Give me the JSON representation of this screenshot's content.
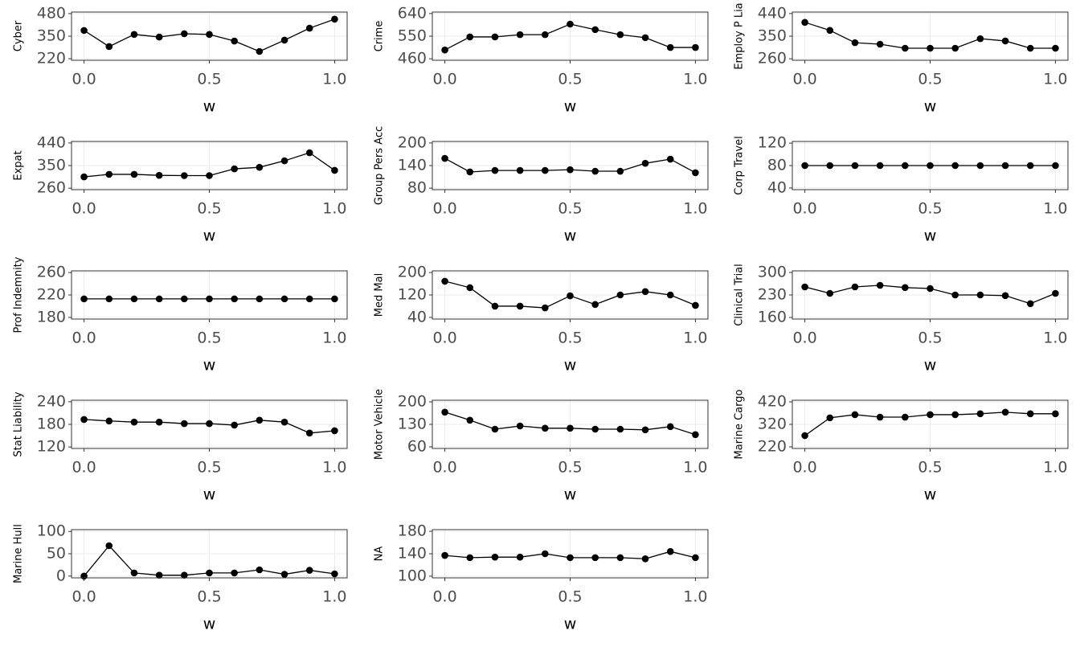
{
  "chart_data": [
    {
      "type": "line",
      "y_label": "Cyber",
      "x_label": "w",
      "x": [
        0,
        0.1,
        0.2,
        0.3,
        0.4,
        0.5,
        0.6,
        0.7,
        0.8,
        0.9,
        1
      ],
      "values": [
        383,
        290,
        360,
        345,
        364,
        360,
        322,
        262,
        327,
        396,
        448
      ],
      "xlim": [
        -0.05,
        1.05
      ],
      "xticks": [
        {
          "value": 0,
          "label": "0.0"
        },
        {
          "value": 0.5,
          "label": "0.5"
        },
        {
          "value": 1,
          "label": "1.0"
        }
      ],
      "ylim": [
        211,
        489
      ],
      "yticks": [
        220,
        350,
        480
      ],
      "color": "#000000",
      "grid": true
    },
    {
      "type": "line",
      "y_label": "Crime",
      "x_label": "w",
      "x": [
        0,
        0.1,
        0.2,
        0.3,
        0.4,
        0.5,
        0.6,
        0.7,
        0.8,
        0.9,
        1
      ],
      "values": [
        495,
        547,
        547,
        556,
        556,
        598,
        576,
        556,
        544,
        505,
        505
      ],
      "xlim": [
        -0.05,
        1.05
      ],
      "xticks": [
        {
          "value": 0,
          "label": "0.0"
        },
        {
          "value": 0.5,
          "label": "0.5"
        },
        {
          "value": 1,
          "label": "1.0"
        }
      ],
      "ylim": [
        454,
        646
      ],
      "yticks": [
        460,
        550,
        640
      ],
      "color": "#000000",
      "grid": true
    },
    {
      "type": "line",
      "y_label": "Employ P Lia",
      "x_label": "w",
      "x": [
        0,
        0.1,
        0.2,
        0.3,
        0.4,
        0.5,
        0.6,
        0.7,
        0.8,
        0.9,
        1
      ],
      "values": [
        405,
        373,
        324,
        318,
        302,
        302,
        302,
        340,
        331,
        302,
        302
      ],
      "xlim": [
        -0.05,
        1.05
      ],
      "xticks": [
        {
          "value": 0,
          "label": "0.0"
        },
        {
          "value": 0.5,
          "label": "0.5"
        },
        {
          "value": 1,
          "label": "1.0"
        }
      ],
      "ylim": [
        254,
        446
      ],
      "yticks": [
        260,
        350,
        440
      ],
      "color": "#000000",
      "grid": true
    },
    {
      "type": "line",
      "y_label": "Expat",
      "x_label": "w",
      "x": [
        0,
        0.1,
        0.2,
        0.3,
        0.4,
        0.5,
        0.6,
        0.7,
        0.8,
        0.9,
        1
      ],
      "values": [
        305,
        315,
        315,
        311,
        310,
        310,
        337,
        343,
        369,
        401,
        331
      ],
      "xlim": [
        -0.05,
        1.05
      ],
      "xticks": [
        {
          "value": 0,
          "label": "0.0"
        },
        {
          "value": 0.5,
          "label": "0.5"
        },
        {
          "value": 1,
          "label": "1.0"
        }
      ],
      "ylim": [
        254,
        446
      ],
      "yticks": [
        260,
        350,
        440
      ],
      "color": "#000000",
      "grid": true
    },
    {
      "type": "line",
      "y_label": "Group Pers Acc",
      "x_label": "w",
      "x": [
        0,
        0.1,
        0.2,
        0.3,
        0.4,
        0.5,
        0.6,
        0.7,
        0.8,
        0.9,
        1
      ],
      "values": [
        159,
        123,
        127,
        127,
        127,
        129,
        125,
        125,
        146,
        157,
        121
      ],
      "xlim": [
        -0.05,
        1.05
      ],
      "xticks": [
        {
          "value": 0,
          "label": "0.0"
        },
        {
          "value": 0.5,
          "label": "0.5"
        },
        {
          "value": 1,
          "label": "1.0"
        }
      ],
      "ylim": [
        76,
        204
      ],
      "yticks": [
        80,
        140,
        200
      ],
      "color": "#000000",
      "grid": true
    },
    {
      "type": "line",
      "y_label": "Corp Travel",
      "x_label": "w",
      "x": [
        0,
        0.1,
        0.2,
        0.3,
        0.4,
        0.5,
        0.6,
        0.7,
        0.8,
        0.9,
        1
      ],
      "values": [
        80,
        80,
        80,
        80,
        80,
        80,
        80,
        80,
        80,
        80,
        80
      ],
      "xlim": [
        -0.05,
        1.05
      ],
      "xticks": [
        {
          "value": 0,
          "label": "0.0"
        },
        {
          "value": 0.5,
          "label": "0.5"
        },
        {
          "value": 1,
          "label": "1.0"
        }
      ],
      "ylim": [
        37,
        123
      ],
      "yticks": [
        40,
        80,
        120
      ],
      "color": "#000000",
      "grid": true
    },
    {
      "type": "line",
      "y_label": "Prof Indemnity",
      "x_label": "w",
      "x": [
        0,
        0.1,
        0.2,
        0.3,
        0.4,
        0.5,
        0.6,
        0.7,
        0.8,
        0.9,
        1
      ],
      "values": [
        213,
        213,
        213,
        213,
        213,
        213,
        213,
        213,
        213,
        213,
        213
      ],
      "xlim": [
        -0.05,
        1.05
      ],
      "xticks": [
        {
          "value": 0,
          "label": "0.0"
        },
        {
          "value": 0.5,
          "label": "0.5"
        },
        {
          "value": 1,
          "label": "1.0"
        }
      ],
      "ylim": [
        177,
        263
      ],
      "yticks": [
        180,
        220,
        260
      ],
      "color": "#000000",
      "grid": true
    },
    {
      "type": "line",
      "y_label": "Med Mal",
      "x_label": "w",
      "x": [
        0,
        0.1,
        0.2,
        0.3,
        0.4,
        0.5,
        0.6,
        0.7,
        0.8,
        0.9,
        1
      ],
      "values": [
        169,
        146,
        80,
        80,
        74,
        117,
        86,
        120,
        132,
        120,
        83
      ],
      "xlim": [
        -0.05,
        1.05
      ],
      "xticks": [
        {
          "value": 0,
          "label": "0.0"
        },
        {
          "value": 0.5,
          "label": "0.5"
        },
        {
          "value": 1,
          "label": "1.0"
        }
      ],
      "ylim": [
        34,
        206
      ],
      "yticks": [
        40,
        120,
        200
      ],
      "color": "#000000",
      "grid": true
    },
    {
      "type": "line",
      "y_label": "Clinical Trial",
      "x_label": "w",
      "x": [
        0,
        0.1,
        0.2,
        0.3,
        0.4,
        0.5,
        0.6,
        0.7,
        0.8,
        0.9,
        1
      ],
      "values": [
        255,
        235,
        255,
        260,
        253,
        250,
        230,
        230,
        228,
        203,
        235
      ],
      "xlim": [
        -0.05,
        1.05
      ],
      "xticks": [
        {
          "value": 0,
          "label": "0.0"
        },
        {
          "value": 0.5,
          "label": "0.5"
        },
        {
          "value": 1,
          "label": "1.0"
        }
      ],
      "ylim": [
        155,
        305
      ],
      "yticks": [
        160,
        230,
        300
      ],
      "color": "#000000",
      "grid": true
    },
    {
      "type": "line",
      "y_label": "Stat Liability",
      "x_label": "w",
      "x": [
        0,
        0.1,
        0.2,
        0.3,
        0.4,
        0.5,
        0.6,
        0.7,
        0.8,
        0.9,
        1
      ],
      "values": [
        193,
        189,
        186,
        186,
        182,
        182,
        178,
        191,
        186,
        157,
        163
      ],
      "xlim": [
        -0.05,
        1.05
      ],
      "xticks": [
        {
          "value": 0,
          "label": "0.0"
        },
        {
          "value": 0.5,
          "label": "0.5"
        },
        {
          "value": 1,
          "label": "1.0"
        }
      ],
      "ylim": [
        116,
        244
      ],
      "yticks": [
        120,
        180,
        240
      ],
      "color": "#000000",
      "grid": true
    },
    {
      "type": "line",
      "y_label": "Motor Vehicle",
      "x_label": "w",
      "x": [
        0,
        0.1,
        0.2,
        0.3,
        0.4,
        0.5,
        0.6,
        0.7,
        0.8,
        0.9,
        1
      ],
      "values": [
        168,
        143,
        115,
        125,
        118,
        118,
        115,
        115,
        113,
        123,
        98
      ],
      "xlim": [
        -0.05,
        1.05
      ],
      "xticks": [
        {
          "value": 0,
          "label": "0.0"
        },
        {
          "value": 0.5,
          "label": "0.5"
        },
        {
          "value": 1,
          "label": "1.0"
        }
      ],
      "ylim": [
        55,
        205
      ],
      "yticks": [
        60,
        130,
        200
      ],
      "color": "#000000",
      "grid": true
    },
    {
      "type": "line",
      "y_label": "Marine Cargo",
      "x_label": "w",
      "x": [
        0,
        0.1,
        0.2,
        0.3,
        0.4,
        0.5,
        0.6,
        0.7,
        0.8,
        0.9,
        1
      ],
      "values": [
        270,
        349,
        363,
        352,
        352,
        363,
        363,
        367,
        374,
        367,
        367
      ],
      "xlim": [
        -0.05,
        1.05
      ],
      "xticks": [
        {
          "value": 0,
          "label": "0.0"
        },
        {
          "value": 0.5,
          "label": "0.5"
        },
        {
          "value": 1,
          "label": "1.0"
        }
      ],
      "ylim": [
        213,
        427
      ],
      "yticks": [
        220,
        320,
        420
      ],
      "color": "#000000",
      "grid": true
    },
    {
      "type": "line",
      "y_label": "Marine Hull",
      "x_label": "w",
      "x": [
        0,
        0.1,
        0.2,
        0.3,
        0.4,
        0.5,
        0.6,
        0.7,
        0.8,
        0.9,
        1
      ],
      "values": [
        0,
        68,
        7,
        2,
        2,
        7,
        7,
        14,
        4,
        13,
        5
      ],
      "xlim": [
        -0.05,
        1.05
      ],
      "xticks": [
        {
          "value": 0,
          "label": "0.0"
        },
        {
          "value": 0.5,
          "label": "0.5"
        },
        {
          "value": 1,
          "label": "1.0"
        }
      ],
      "ylim": [
        -4,
        104
      ],
      "yticks": [
        0,
        50,
        100
      ],
      "color": "#000000",
      "grid": true
    },
    {
      "type": "line",
      "y_label": "NA",
      "x_label": "w",
      "x": [
        0,
        0.1,
        0.2,
        0.3,
        0.4,
        0.5,
        0.6,
        0.7,
        0.8,
        0.9,
        1
      ],
      "values": [
        137,
        133,
        134,
        134,
        140,
        133,
        133,
        133,
        131,
        144,
        133
      ],
      "xlim": [
        -0.05,
        1.05
      ],
      "xticks": [
        {
          "value": 0,
          "label": "0.0"
        },
        {
          "value": 0.5,
          "label": "0.5"
        },
        {
          "value": 1,
          "label": "1.0"
        }
      ],
      "ylim": [
        97,
        183
      ],
      "yticks": [
        100,
        140,
        180
      ],
      "color": "#000000",
      "grid": true
    }
  ]
}
